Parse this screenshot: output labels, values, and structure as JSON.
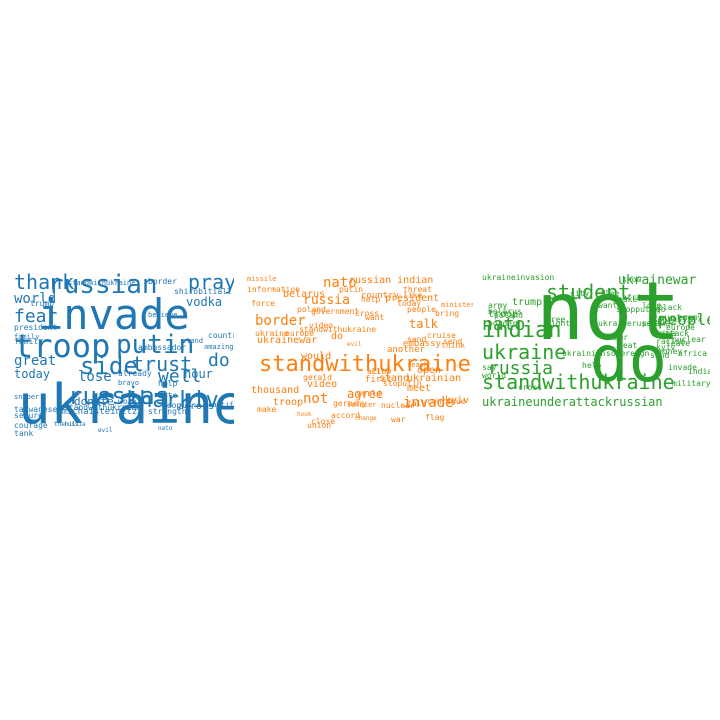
{
  "colors": {
    "blue": "#1f77b4",
    "orange": "#ff7f0e",
    "green": "#2ca02c"
  },
  "clouds": [
    {
      "color": "#1f77b4",
      "words": [
        "ukraine",
        "invade",
        "troop",
        "putin",
        "russian",
        "russias",
        "kharkiv",
        "side",
        "trust",
        "thank",
        "pray",
        "fear",
        "world",
        "great",
        "lose",
        "well",
        "vodka",
        "today",
        "hour",
        "do",
        "donate",
        "standwithukraine",
        "ambassador",
        "stand",
        "president",
        "family",
        "trump",
        "country",
        "amazing",
        "bravo",
        "help",
        "people",
        "across",
        "work",
        "sniper",
        "believe",
        "strength",
        "already",
        "border",
        "secure",
        "courage",
        "shirobitiall",
        "tank",
        "family",
        "taiwanese",
        "amichaisteinitz",
        "standwithukraine",
        "russia",
        "nato",
        "evil",
        "beautiful",
        "nato",
        "thehill"
      ]
    },
    {
      "color": "#ff7f0e",
      "words": [
        "standwithukraine",
        "nato",
        "russia",
        "border",
        "belarus",
        "putin",
        "poland",
        "russian indian",
        "country",
        "people",
        "talk",
        "not",
        "invade",
        "agree",
        "meet",
        "kyiv",
        "ukrainian",
        "video",
        "would",
        "missile",
        "information",
        "force",
        "ukrainewar",
        "thousand",
        "troop",
        "do",
        "ukraine",
        "government",
        "cross",
        "city",
        "stand",
        "stoputin",
        "nuclear",
        "germany",
        "standwithukraine",
        "embassy",
        "another",
        "send",
        "continue",
        "make",
        "hook",
        "accord",
        "change",
        "world",
        "first",
        "help",
        "today",
        "want",
        "cruise",
        "reach",
        "bring",
        "minister",
        "union",
        "soldier",
        "gerald",
        "allow",
        "evil",
        "threat",
        "close",
        "open",
        "war",
        "europe",
        "talk",
        "think",
        "flag",
        "send",
        "like",
        "president",
        "video"
      ]
    },
    {
      "color": "#2ca02c",
      "words": [
        "not",
        "do",
        "ukraine",
        "standwithukraine",
        "russia",
        "student",
        "indian",
        "nato",
        "people",
        "ukraineunderattackrussian",
        "ukrainewar",
        "ukraineinvasion",
        "trump",
        "army",
        "troop",
        "border",
        "country",
        "black",
        "stopputin",
        "send",
        "racism",
        "military",
        "europe",
        "invade",
        "nuclear",
        "enemy",
        "africans",
        "know",
        "flee",
        "city",
        "nuke",
        "lose",
        "beat",
        "sovereign",
        "go",
        "kyiv",
        "part",
        "free",
        "fight",
        "stoprussia",
        "china",
        "attack",
        "say",
        "order",
        "world",
        "poland",
        "belarus",
        "want",
        "money",
        "help",
        "leave",
        "africa",
        "india",
        "ukrainerussiawar",
        "ukrainian",
        "cross"
      ]
    }
  ]
}
